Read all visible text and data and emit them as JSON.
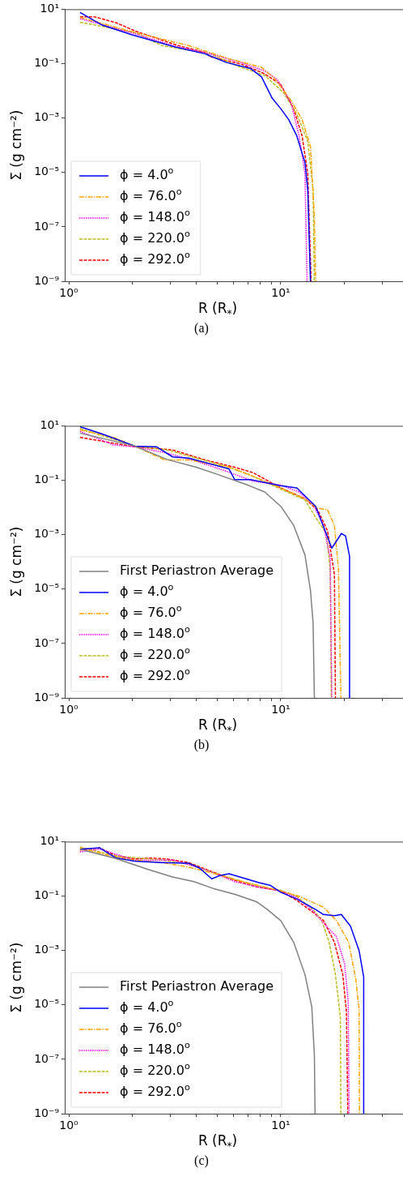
{
  "chart_data": [
    {
      "type": "line",
      "log": "xy",
      "xlabel": "R (R$_{*}$)",
      "ylabel": "Σ (g cm⁻²)",
      "legend": "bottom left",
      "annotations": [
        "(a)"
      ],
      "xlim": [
        0.957,
        37.7
      ],
      "ylim": [
        1e-09,
        10
      ],
      "xticks": [
        {
          "value": 1,
          "label": "10⁰"
        },
        {
          "value": 2,
          "label": null
        },
        {
          "value": 3,
          "label": null
        },
        {
          "value": 4,
          "label": null
        },
        {
          "value": 5,
          "label": null
        },
        {
          "value": 6,
          "label": null
        },
        {
          "value": 7,
          "label": null
        },
        {
          "value": 8,
          "label": null
        },
        {
          "value": 9,
          "label": null
        },
        {
          "value": 10,
          "label": "10¹"
        },
        {
          "value": 20,
          "label": null
        },
        {
          "value": 30,
          "label": null
        }
      ],
      "yticks": [
        {
          "value": 10,
          "label": "10¹"
        },
        {
          "value": 0.1,
          "label": "10⁻¹"
        },
        {
          "value": 0.001,
          "label": "10⁻³"
        },
        {
          "value": 1e-05,
          "label": "10⁻⁵"
        },
        {
          "value": 1e-07,
          "label": "10⁻⁷"
        },
        {
          "value": 1e-09,
          "label": "10⁻⁹"
        }
      ],
      "series": [
        {
          "name": "ϕ = 4.0$^{o}$",
          "color": "#0000ff",
          "line_style": "solid",
          "x": [
            1.13,
            1.44,
            1.99,
            3.18,
            4.39,
            5.55,
            7.2,
            8.1,
            9.1,
            10,
            10.9,
            11.9,
            13.0,
            13.4,
            13.8
          ],
          "values": [
            7.6,
            2.6,
            1.15,
            0.41,
            0.23,
            0.11,
            0.066,
            0.033,
            0.0054,
            0.0022,
            0.00087,
            0.00022,
            2.3e-05,
            2.3e-06,
            1e-09
          ]
        },
        {
          "name": "ϕ = 76.0$^{o}$",
          "color": "#ffa500",
          "line_style": "dashdot",
          "x": [
            1.13,
            2.05,
            3.68,
            5.7,
            8.1,
            9.4,
            11.2,
            12.6,
            13.8,
            14.4,
            14.6
          ],
          "values": [
            5.0,
            1.4,
            0.46,
            0.15,
            0.074,
            0.027,
            0.0043,
            0.00087,
            9e-05,
            2.5e-07,
            1e-09
          ]
        },
        {
          "name": "ϕ = 148.0$^{o}$",
          "color": "#ff00ff",
          "line_style": "dotted",
          "x": [
            1.13,
            2.05,
            3.18,
            4.65,
            6.6,
            8.6,
            9.7,
            11.2,
            12.2,
            13.0,
            13.3
          ],
          "values": [
            4.5,
            1.27,
            0.43,
            0.23,
            0.105,
            0.05,
            0.024,
            0.0034,
            0.00022,
            9e-06,
            1e-09
          ]
        },
        {
          "name": "ϕ = 220.0$^{o}$",
          "color": "#bcbd22",
          "line_style": "dashed",
          "x": [
            1.13,
            2.05,
            2.75,
            4.65,
            6.2,
            8.4,
            10.3,
            11.9,
            13.4,
            14.2,
            14.4
          ],
          "values": [
            3.3,
            1.4,
            0.46,
            0.23,
            0.083,
            0.037,
            0.0085,
            0.0014,
            0.00014,
            2.3e-06,
            1e-09
          ]
        },
        {
          "name": "ϕ = 292.0$^{o}$",
          "color": "#ff0000",
          "line_style": "dashed",
          "x": [
            1.13,
            1.32,
            1.67,
            2.05,
            3.28,
            4.39,
            4.65,
            6.6,
            8.4,
            10,
            11.5,
            12.6,
            13.4,
            13.9
          ],
          "values": [
            5.3,
            5.3,
            3.2,
            1.6,
            0.46,
            0.26,
            0.18,
            0.093,
            0.042,
            0.017,
            0.0022,
            0.00022,
            9e-06,
            1e-09
          ]
        }
      ]
    },
    {
      "type": "line",
      "log": "xy",
      "xlabel": "R (R$_{*}$)",
      "ylabel": "Σ (g cm⁻²)",
      "legend": "bottom left",
      "annotations": [
        "(b)"
      ],
      "xlim": [
        0.957,
        37.7
      ],
      "ylim": [
        1e-09,
        10
      ],
      "xticks": [
        {
          "value": 1,
          "label": "10⁰"
        },
        {
          "value": 2,
          "label": null
        },
        {
          "value": 3,
          "label": null
        },
        {
          "value": 4,
          "label": null
        },
        {
          "value": 5,
          "label": null
        },
        {
          "value": 6,
          "label": null
        },
        {
          "value": 7,
          "label": null
        },
        {
          "value": 8,
          "label": null
        },
        {
          "value": 9,
          "label": null
        },
        {
          "value": 10,
          "label": "10¹"
        },
        {
          "value": 20,
          "label": null
        },
        {
          "value": 30,
          "label": null
        }
      ],
      "yticks": [
        {
          "value": 10,
          "label": "10¹"
        },
        {
          "value": 0.1,
          "label": "10⁻¹"
        },
        {
          "value": 0.001,
          "label": "10⁻³"
        },
        {
          "value": 1e-05,
          "label": "10⁻⁵"
        },
        {
          "value": 1e-07,
          "label": "10⁻⁷"
        },
        {
          "value": 1e-09,
          "label": "10⁻⁹"
        }
      ],
      "series": [
        {
          "name": "First Periastron Average",
          "color": "#808080",
          "line_style": "solid",
          "x": [
            1.13,
            2.05,
            2.91,
            4.0,
            5.2,
            7.0,
            8.4,
            10,
            11.5,
            13.0,
            13.8,
            14.2,
            14.4
          ],
          "values": [
            5.4,
            1.8,
            0.58,
            0.3,
            0.15,
            0.066,
            0.037,
            0.011,
            0.0022,
            0.00018,
            9e-06,
            5.9e-07,
            1e-09
          ]
        },
        {
          "name": "ϕ = 4.0$^{o}$",
          "color": "#0000ff",
          "line_style": "solid",
          "x": [
            1.13,
            1.44,
            2.05,
            2.59,
            3.09,
            3.68,
            5.7,
            6.06,
            7.2,
            10,
            11.9,
            14.6,
            17.4,
            19.3,
            20.2,
            21.1,
            21.1
          ],
          "values": [
            9.3,
            5.0,
            1.8,
            1.7,
            0.72,
            0.65,
            0.26,
            0.105,
            0.105,
            0.063,
            0.052,
            0.011,
            0.00032,
            0.0011,
            0.0009,
            0.00016,
            1e-09
          ]
        },
        {
          "name": "ϕ = 76.0$^{o}$",
          "color": "#ffa500",
          "line_style": "dashdot",
          "x": [
            1.13,
            1.62,
            2.05,
            2.83,
            3.68,
            5.7,
            7.4,
            10,
            13.0,
            14.8,
            16.6,
            17.9,
            18.7,
            19.2
          ],
          "values": [
            7.1,
            3.8,
            1.8,
            0.56,
            0.56,
            0.3,
            0.14,
            0.052,
            0.021,
            0.0095,
            0.0082,
            0.0022,
            5.6e-05,
            1e-09
          ]
        },
        {
          "name": "ϕ = 148.0$^{o}$",
          "color": "#ff00ff",
          "line_style": "dotted",
          "x": [
            1.13,
            1.62,
            2.05,
            2.91,
            4.0,
            5.4,
            7.4,
            10,
            12.2,
            14.2,
            15.9,
            17.1,
            17.4
          ],
          "values": [
            6.3,
            2.0,
            1.7,
            1.0,
            0.5,
            0.23,
            0.093,
            0.066,
            0.037,
            0.013,
            0.0022,
            0.00014,
            1e-09
          ]
        },
        {
          "name": "ϕ = 220.0$^{o}$",
          "color": "#bcbd22",
          "line_style": "dashed",
          "x": [
            1.13,
            2.05,
            2.91,
            4.0,
            5.5,
            7.0,
            10,
            13.0,
            14.6,
            16.4,
            17.1,
            17.3
          ],
          "values": [
            7.9,
            1.8,
            1.3,
            0.65,
            0.33,
            0.17,
            0.047,
            0.019,
            0.0043,
            0.0011,
            5.6e-05,
            1e-09
          ]
        },
        {
          "name": "ϕ = 292.0$^{o}$",
          "color": "#ff0000",
          "line_style": "dashed",
          "x": [
            1.13,
            1.62,
            2.05,
            3.09,
            4.39,
            6.06,
            7.4,
            10,
            13.0,
            15.0,
            16.6,
            17.9,
            18.1
          ],
          "values": [
            3.8,
            2.3,
            1.7,
            1.3,
            0.56,
            0.3,
            0.19,
            0.052,
            0.021,
            0.0076,
            0.0014,
            3.5e-05,
            1e-09
          ]
        }
      ]
    },
    {
      "type": "line",
      "log": "xy",
      "xlabel": "R (R$_{*}$)",
      "ylabel": "Σ (g cm⁻²)",
      "legend": "bottom left",
      "annotations": [
        "(c)"
      ],
      "xlim": [
        0.957,
        37.7
      ],
      "ylim": [
        1e-09,
        10
      ],
      "xticks": [
        {
          "value": 1,
          "label": "10⁰"
        },
        {
          "value": 2,
          "label": null
        },
        {
          "value": 3,
          "label": null
        },
        {
          "value": 4,
          "label": null
        },
        {
          "value": 5,
          "label": null
        },
        {
          "value": 6,
          "label": null
        },
        {
          "value": 7,
          "label": null
        },
        {
          "value": 8,
          "label": null
        },
        {
          "value": 9,
          "label": null
        },
        {
          "value": 10,
          "label": "10¹"
        },
        {
          "value": 20,
          "label": null
        },
        {
          "value": 30,
          "label": null
        }
      ],
      "yticks": [
        {
          "value": 10,
          "label": "10¹"
        },
        {
          "value": 0.1,
          "label": "10⁻¹"
        },
        {
          "value": 0.001,
          "label": "10⁻³"
        },
        {
          "value": 1e-05,
          "label": "10⁻⁵"
        },
        {
          "value": 1e-07,
          "label": "10⁻⁷"
        },
        {
          "value": 1e-09,
          "label": "10⁻⁹"
        }
      ],
      "series": [
        {
          "name": "First Periastron Average",
          "color": "#808080",
          "line_style": "solid",
          "x": [
            1.13,
            1.67,
            2.37,
            3.09,
            3.9,
            4.8,
            6.06,
            7.67,
            8.6,
            10,
            11.5,
            13.0,
            14.0,
            14.4,
            14.5
          ],
          "values": [
            5.3,
            2.4,
            0.95,
            0.5,
            0.34,
            0.19,
            0.117,
            0.062,
            0.033,
            0.0125,
            0.002,
            0.00013,
            8.5e-06,
            1.4e-07,
            1e-09
          ]
        },
        {
          "name": "ϕ = 4.0$^{o}$",
          "color": "#0000ff",
          "line_style": "solid",
          "x": [
            1.13,
            1.4,
            1.67,
            2.05,
            2.75,
            3.68,
            4.14,
            4.72,
            5.2,
            5.7,
            7.9,
            8.9,
            10,
            11.9,
            14.6,
            15.9,
            17.9,
            19.3,
            21.3,
            23.4,
            24.6,
            24.6
          ],
          "values": [
            5.3,
            5.9,
            2.5,
            1.9,
            1.7,
            1.6,
            1.07,
            0.43,
            0.58,
            0.66,
            0.31,
            0.25,
            0.138,
            0.078,
            0.032,
            0.021,
            0.019,
            0.021,
            0.0079,
            0.001,
            0.000105,
            1e-09
          ]
        },
        {
          "name": "ϕ = 76.0$^{o}$",
          "color": "#ffa500",
          "line_style": "dashdot",
          "x": [
            1.13,
            1.67,
            2.05,
            2.75,
            3.68,
            4.65,
            6.6,
            10,
            12.2,
            15.9,
            18.3,
            20.9,
            22.6,
            23.4,
            23.5
          ],
          "values": [
            5.9,
            2.7,
            2.1,
            1.7,
            1.15,
            0.74,
            0.34,
            0.155,
            0.098,
            0.039,
            0.0126,
            0.002,
            8.3e-05,
            6.8e-06,
            1e-09
          ]
        },
        {
          "name": "ϕ = 148.0$^{o}$",
          "color": "#ff00ff",
          "line_style": "dotted",
          "x": [
            1.13,
            1.4,
            2.05,
            3.09,
            4.39,
            6.06,
            7.67,
            10,
            11.9,
            14.2,
            16.4,
            18.3,
            20.0,
            20.8,
            21.0
          ],
          "values": [
            4.2,
            5.3,
            2.1,
            2.1,
            0.95,
            0.34,
            0.22,
            0.155,
            0.088,
            0.028,
            0.0079,
            0.0032,
            0.00032,
            1.35e-05,
            1e-09
          ]
        },
        {
          "name": "ϕ = 220.0$^{o}$",
          "color": "#bcbd22",
          "line_style": "dashed",
          "x": [
            1.13,
            1.67,
            2.75,
            3.68,
            5.4,
            7.67,
            10,
            11.9,
            14.2,
            15.6,
            16.9,
            18.1,
            19.1,
            19.2
          ],
          "values": [
            6.4,
            3.0,
            2.1,
            1.5,
            0.54,
            0.24,
            0.16,
            0.098,
            0.032,
            0.0126,
            0.002,
            0.00013,
            3.4e-06,
            1e-09
          ]
        },
        {
          "name": "ϕ = 292.0$^{o}$",
          "color": "#ff0000",
          "line_style": "dashed",
          "x": [
            1.13,
            1.4,
            1.67,
            2.05,
            2.44,
            2.91,
            3.68,
            4.8,
            6.06,
            7.67,
            10,
            11.9,
            14.2,
            15.9,
            17.9,
            19.6,
            20.4,
            20.7
          ],
          "values": [
            4.9,
            5.9,
            3.0,
            2.3,
            2.5,
            2.3,
            1.7,
            0.76,
            0.38,
            0.22,
            0.155,
            0.069,
            0.025,
            0.0126,
            0.002,
            0.00013,
            5.4e-06,
            1e-09
          ]
        }
      ]
    }
  ]
}
